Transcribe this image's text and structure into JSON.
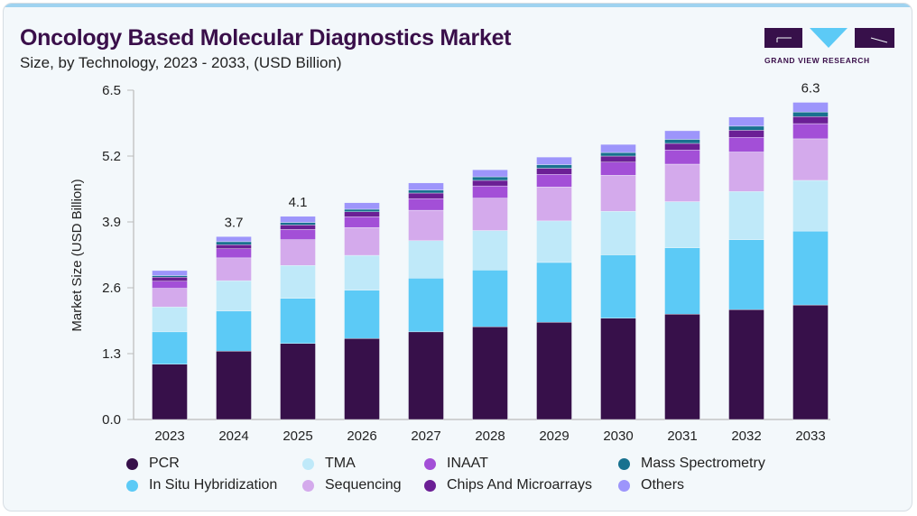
{
  "header": {
    "title": "Oncology Based Molecular Diagnostics Market",
    "subtitle": "Size, by Technology, 2023 - 2033, (USD Billion)"
  },
  "logo": {
    "text": "GRAND VIEW RESEARCH"
  },
  "chart_data": {
    "type": "bar",
    "stacked": true,
    "title": "Oncology Based Molecular Diagnostics Market",
    "subtitle": "Size, by Technology, 2023 - 2033, (USD Billion)",
    "xlabel": "",
    "ylabel": "Market Size (USD Billion)",
    "ylim": [
      0,
      6.5
    ],
    "yticks": [
      "0.0",
      "1.3",
      "2.6",
      "3.9",
      "5.2",
      "6.5"
    ],
    "categories": [
      "2023",
      "2024",
      "2025",
      "2026",
      "2027",
      "2028",
      "2029",
      "2030",
      "2031",
      "2032",
      "2033"
    ],
    "series": [
      {
        "name": "PCR",
        "color": "#37104a",
        "values": [
          1.09,
          1.35,
          1.5,
          1.6,
          1.73,
          1.83,
          1.92,
          2.0,
          2.08,
          2.17,
          2.26
        ]
      },
      {
        "name": "In Situ Hybridization",
        "color": "#5ccaf6",
        "values": [
          0.64,
          0.79,
          0.89,
          0.95,
          1.06,
          1.12,
          1.18,
          1.25,
          1.31,
          1.38,
          1.46
        ]
      },
      {
        "name": "TMA",
        "color": "#bfe9f9",
        "values": [
          0.49,
          0.6,
          0.65,
          0.69,
          0.74,
          0.78,
          0.82,
          0.86,
          0.91,
          0.95,
          1.0
        ]
      },
      {
        "name": "Sequencing",
        "color": "#d4aaec",
        "values": [
          0.37,
          0.45,
          0.51,
          0.55,
          0.6,
          0.64,
          0.67,
          0.71,
          0.74,
          0.78,
          0.82
        ]
      },
      {
        "name": "INAAT",
        "color": "#a34fd7",
        "values": [
          0.14,
          0.18,
          0.2,
          0.21,
          0.23,
          0.24,
          0.25,
          0.26,
          0.28,
          0.29,
          0.3
        ]
      },
      {
        "name": "Chips And Microarrays",
        "color": "#6b1f95",
        "values": [
          0.08,
          0.08,
          0.09,
          0.1,
          0.11,
          0.11,
          0.12,
          0.12,
          0.13,
          0.14,
          0.14
        ]
      },
      {
        "name": "Mass Spectrometry",
        "color": "#18718f",
        "values": [
          0.03,
          0.06,
          0.05,
          0.05,
          0.06,
          0.07,
          0.07,
          0.07,
          0.08,
          0.08,
          0.09
        ]
      },
      {
        "name": "Others",
        "color": "#9d95fb",
        "values": [
          0.1,
          0.1,
          0.12,
          0.13,
          0.14,
          0.14,
          0.15,
          0.16,
          0.17,
          0.18,
          0.19
        ]
      }
    ],
    "data_labels": [
      {
        "category": "2024",
        "text": "3.7"
      },
      {
        "category": "2025",
        "text": "4.1"
      },
      {
        "category": "2033",
        "text": "6.3"
      }
    ],
    "legend_position": "bottom",
    "legend_order": [
      "PCR",
      "TMA",
      "INAAT",
      "Mass Spectrometry",
      "In Situ Hybridization",
      "Sequencing",
      "Chips And Microarrays",
      "Others"
    ],
    "grid": false
  }
}
